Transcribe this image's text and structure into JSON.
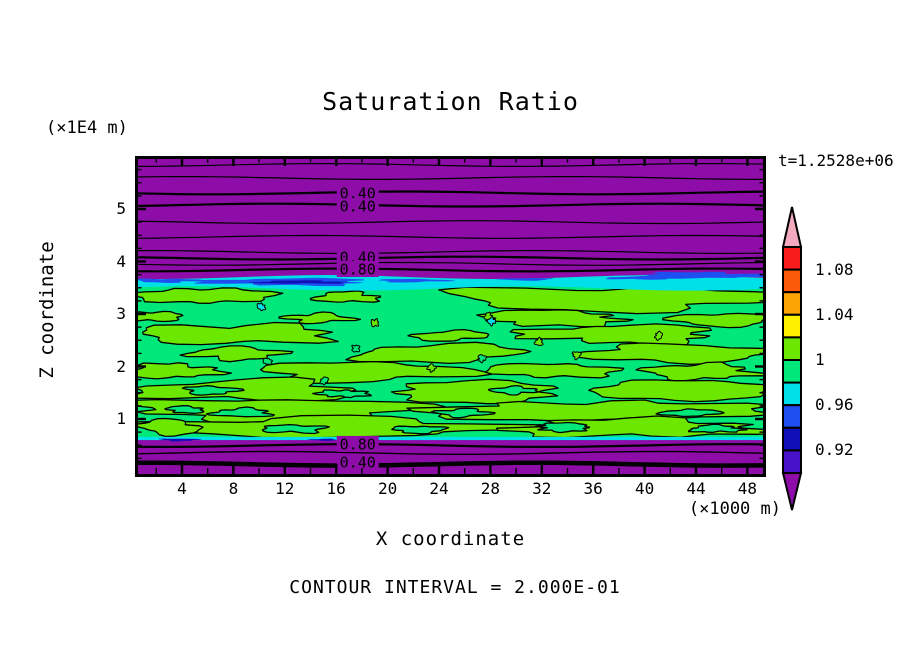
{
  "title": "Saturation Ratio",
  "time_label": "t=1.2528e+06",
  "footer_note": "CONTOUR INTERVAL = 2.000E-01",
  "x_axis": {
    "title": "X coordinate",
    "unit_label": "(×1000 m)",
    "tick_labels": [
      4,
      8,
      12,
      16,
      20,
      24,
      28,
      32,
      36,
      40,
      44,
      48
    ],
    "minor_step": 2,
    "range": [
      0.34,
      49.45
    ]
  },
  "y_axis": {
    "title": "Z coordinate",
    "unit_label": "(×1E4 m)",
    "tick_labels": [
      1,
      2,
      3,
      4,
      5
    ],
    "minor_step": 0.25,
    "range": [
      -0.1,
      6.01
    ]
  },
  "colorbar": {
    "tick_labels": [
      "1.08",
      "1.04",
      "1",
      "0.96",
      "0.92"
    ],
    "label_boundaries": [
      1,
      3,
      5,
      7,
      9
    ],
    "segment_colors_top_to_bottom": [
      "#F81C1C",
      "#FA5A0A",
      "#FCA405",
      "#FFF000",
      "#6CE800",
      "#00E87A",
      "#00E0E8",
      "#1E4FF0",
      "#1010B8",
      "#4812C8"
    ],
    "top_arrow_color": "#F4AABE",
    "bottom_arrow_color": "#8E0DA8",
    "levels": [
      0.9,
      0.92,
      0.94,
      0.96,
      0.98,
      1.0,
      1.02,
      1.04,
      1.06,
      1.08,
      1.1
    ]
  },
  "chart_data": {
    "type": "heatmap",
    "subtype": "filled-contour",
    "title": "Saturation Ratio",
    "xlabel": "X coordinate",
    "ylabel": "Z coordinate",
    "x_units": "×1000 m",
    "y_units": "×1E4 m",
    "xlim": [
      0.34,
      49.45
    ],
    "ylim": [
      -0.1,
      6.01
    ],
    "time": "t=1.2528e+06",
    "contour_interval": 0.2,
    "colors": {
      "purple_low": "#8E0DA8",
      "indigo": "#4812C8",
      "navy": "#1010B8",
      "blue": "#1E4FF0",
      "cyan": "#00E0E8",
      "spring_green": "#00E87A",
      "chartreuse": "#6CE800",
      "yellow": "#FFF000",
      "amber": "#FCA405",
      "orange": "#FA5A0A",
      "red": "#F81C1C",
      "pink": "#F4AABE",
      "line": "#000000"
    },
    "bands": {
      "top_purple": {
        "y0f": 0.0,
        "y1f": 0.377,
        "value_range": "< 0.90"
      },
      "top_cyan": {
        "y0f": 0.377,
        "y1f": 0.408,
        "value_range": "0.96-0.98"
      },
      "middle_green": {
        "y0f": 0.408,
        "y1f": 0.875,
        "value_range": "0.98-1.02"
      },
      "bottom_cyan": {
        "y0f": 0.875,
        "y1f": 0.885,
        "value_range": "0.96-0.98"
      },
      "bottom_purple": {
        "y0f": 0.885,
        "y1f": 1.0,
        "value_range": "< 0.90"
      }
    },
    "contour_labels": [
      {
        "text": "0.40",
        "xf": 0.353,
        "yf": 0.115
      },
      {
        "text": "0.40",
        "xf": 0.353,
        "yf": 0.156
      },
      {
        "text": "0.40",
        "xf": 0.353,
        "yf": 0.315
      },
      {
        "text": "0.80",
        "xf": 0.353,
        "yf": 0.352
      },
      {
        "text": "0.80",
        "xf": 0.353,
        "yf": 0.897
      },
      {
        "text": "0.40",
        "xf": 0.353,
        "yf": 0.953
      }
    ],
    "top_contour_lines": [
      {
        "yf": 0.028,
        "w": 1.2
      },
      {
        "yf": 0.0685,
        "w": 1.2
      },
      {
        "yf": 0.115,
        "w": 2.2
      },
      {
        "yf": 0.153,
        "w": 2.2
      },
      {
        "yf": 0.206,
        "w": 1.2
      },
      {
        "yf": 0.252,
        "w": 1.2
      },
      {
        "yf": 0.299,
        "w": 1.2
      },
      {
        "yf": 0.318,
        "w": 2.2
      },
      {
        "yf": 0.336,
        "w": 1.2
      },
      {
        "yf": 0.355,
        "w": 2.2
      }
    ],
    "bottom_contour_lines": [
      {
        "yf": 0.902,
        "w": 2.2
      },
      {
        "yf": 0.925,
        "w": 1.4
      },
      {
        "yf": 0.96,
        "w": 4.5
      }
    ],
    "blue_streaks": [
      {
        "cx": 0.05,
        "cy": 0.388,
        "rx": 0.05,
        "ry": 0.006,
        "c": "blue"
      },
      {
        "cx": 0.24,
        "cy": 0.392,
        "rx": 0.13,
        "ry": 0.011,
        "c": "blue"
      },
      {
        "cx": 0.26,
        "cy": 0.393,
        "rx": 0.07,
        "ry": 0.005,
        "c": "navy"
      },
      {
        "cx": 0.44,
        "cy": 0.388,
        "rx": 0.055,
        "ry": 0.005,
        "c": "blue"
      },
      {
        "cx": 0.62,
        "cy": 0.384,
        "rx": 0.04,
        "ry": 0.004,
        "c": "blue"
      },
      {
        "cx": 0.8,
        "cy": 0.38,
        "rx": 0.05,
        "ry": 0.005,
        "c": "blue"
      },
      {
        "cx": 0.9,
        "cy": 0.372,
        "rx": 0.105,
        "ry": 0.0095,
        "c": "blue"
      },
      {
        "cx": 0.07,
        "cy": 0.884,
        "rx": 0.03,
        "ry": 0.004,
        "c": "navy"
      },
      {
        "cx": 0.3,
        "cy": 0.884,
        "rx": 0.02,
        "ry": 0.003,
        "c": "navy"
      }
    ],
    "chartreuse_blobs": [
      {
        "cx": 0.11,
        "cy": 0.435,
        "rx": 0.095,
        "ry": 0.026,
        "s": 3
      },
      {
        "cx": 0.335,
        "cy": 0.44,
        "rx": 0.05,
        "ry": 0.016,
        "s": 7
      },
      {
        "cx": 0.76,
        "cy": 0.445,
        "rx": 0.26,
        "ry": 0.036,
        "s": 1
      },
      {
        "cx": 0.03,
        "cy": 0.5,
        "rx": 0.045,
        "ry": 0.015,
        "s": 11
      },
      {
        "cx": 0.29,
        "cy": 0.505,
        "rx": 0.05,
        "ry": 0.014,
        "s": 5
      },
      {
        "cx": 0.66,
        "cy": 0.505,
        "rx": 0.12,
        "ry": 0.022,
        "s": 9
      },
      {
        "cx": 0.93,
        "cy": 0.51,
        "rx": 0.08,
        "ry": 0.02,
        "s": 13
      },
      {
        "cx": 0.16,
        "cy": 0.555,
        "rx": 0.155,
        "ry": 0.03,
        "s": 2
      },
      {
        "cx": 0.5,
        "cy": 0.56,
        "rx": 0.055,
        "ry": 0.016,
        "s": 15
      },
      {
        "cx": 0.77,
        "cy": 0.555,
        "rx": 0.15,
        "ry": 0.028,
        "s": 4
      },
      {
        "cx": 0.16,
        "cy": 0.615,
        "rx": 0.07,
        "ry": 0.02,
        "s": 17
      },
      {
        "cx": 0.48,
        "cy": 0.615,
        "rx": 0.14,
        "ry": 0.026,
        "s": 6
      },
      {
        "cx": 0.86,
        "cy": 0.615,
        "rx": 0.15,
        "ry": 0.028,
        "s": 8
      },
      {
        "cx": 0.06,
        "cy": 0.67,
        "rx": 0.07,
        "ry": 0.022,
        "s": 19
      },
      {
        "cx": 0.36,
        "cy": 0.672,
        "rx": 0.165,
        "ry": 0.03,
        "s": 10
      },
      {
        "cx": 0.66,
        "cy": 0.668,
        "rx": 0.09,
        "ry": 0.024,
        "s": 12
      },
      {
        "cx": 0.895,
        "cy": 0.672,
        "rx": 0.085,
        "ry": 0.024,
        "s": 14
      },
      {
        "cx": 0.18,
        "cy": 0.73,
        "rx": 0.17,
        "ry": 0.032,
        "s": 16
      },
      {
        "cx": 0.54,
        "cy": 0.735,
        "rx": 0.145,
        "ry": 0.03,
        "s": 18
      },
      {
        "cx": 0.87,
        "cy": 0.73,
        "rx": 0.145,
        "ry": 0.032,
        "s": 20
      },
      {
        "cx": 0.22,
        "cy": 0.79,
        "rx": 0.225,
        "ry": 0.034,
        "s": 22
      },
      {
        "cx": 0.73,
        "cy": 0.795,
        "rx": 0.235,
        "ry": 0.034,
        "s": 24
      },
      {
        "cx": 0.3,
        "cy": 0.845,
        "rx": 0.29,
        "ry": 0.03,
        "s": 26
      },
      {
        "cx": 0.8,
        "cy": 0.848,
        "rx": 0.195,
        "ry": 0.028,
        "s": 28
      },
      {
        "cx": 0.055,
        "cy": 0.845,
        "rx": 0.05,
        "ry": 0.022,
        "s": 30
      }
    ],
    "green_holes": [
      {
        "cx": 0.12,
        "cy": 0.73,
        "rx": 0.04,
        "ry": 0.013,
        "s": 31
      },
      {
        "cx": 0.33,
        "cy": 0.74,
        "rx": 0.035,
        "ry": 0.012,
        "s": 33
      },
      {
        "cx": 0.52,
        "cy": 0.8,
        "rx": 0.04,
        "ry": 0.012,
        "s": 35
      },
      {
        "cx": 0.17,
        "cy": 0.8,
        "rx": 0.045,
        "ry": 0.013,
        "s": 37
      },
      {
        "cx": 0.68,
        "cy": 0.845,
        "rx": 0.045,
        "ry": 0.012,
        "s": 39
      },
      {
        "cx": 0.25,
        "cy": 0.85,
        "rx": 0.05,
        "ry": 0.012,
        "s": 41
      },
      {
        "cx": 0.45,
        "cy": 0.852,
        "rx": 0.04,
        "ry": 0.011,
        "s": 43
      },
      {
        "cx": 0.88,
        "cy": 0.8,
        "rx": 0.04,
        "ry": 0.012,
        "s": 45
      },
      {
        "cx": 0.6,
        "cy": 0.73,
        "rx": 0.035,
        "ry": 0.011,
        "s": 47
      },
      {
        "cx": 0.92,
        "cy": 0.85,
        "rx": 0.04,
        "ry": 0.011,
        "s": 49
      },
      {
        "cx": 0.08,
        "cy": 0.79,
        "rx": 0.03,
        "ry": 0.01,
        "s": 51
      }
    ],
    "specks": [
      {
        "x": 0.38,
        "y": 0.52,
        "c": "chartreuse"
      },
      {
        "x": 0.56,
        "y": 0.5,
        "c": "chartreuse"
      },
      {
        "x": 0.21,
        "y": 0.64,
        "c": "spring_green"
      },
      {
        "x": 0.47,
        "y": 0.66,
        "c": "chartreuse"
      },
      {
        "x": 0.7,
        "y": 0.62,
        "c": "chartreuse"
      },
      {
        "x": 0.83,
        "y": 0.56,
        "c": "chartreuse"
      },
      {
        "x": 0.35,
        "y": 0.6,
        "c": "spring_green"
      },
      {
        "x": 0.64,
        "y": 0.58,
        "c": "chartreuse"
      },
      {
        "x": 0.2,
        "y": 0.47,
        "c": "cyan"
      },
      {
        "x": 0.565,
        "y": 0.515,
        "c": "cyan"
      },
      {
        "x": 0.55,
        "y": 0.63,
        "c": "spring_green"
      },
      {
        "x": 0.3,
        "y": 0.7,
        "c": "spring_green"
      }
    ]
  }
}
